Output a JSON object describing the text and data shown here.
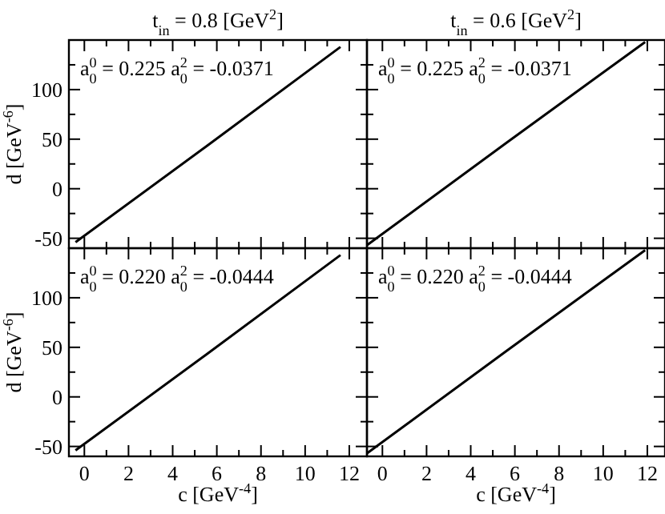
{
  "chart_data": [
    {
      "type": "line",
      "title": "t$_{in}$ = 0.8 [GeV$^{2}$]",
      "ylabel": "d [GeV$^{-6}$]",
      "annotations": [
        "a$_{0}$$^{0}$ = 0.225 a$_{0}$$^{2}$ = -0.0371"
      ],
      "tick_labels": "y",
      "xlim": [
        -0.7,
        12.8
      ],
      "ylim": [
        -60,
        150
      ],
      "xticks": [
        0,
        {
          "value": 1,
          "label": null
        },
        2,
        {
          "value": 3,
          "label": null
        },
        4,
        {
          "value": 5,
          "label": null
        },
        6,
        {
          "value": 7,
          "label": null
        },
        8,
        {
          "value": 9,
          "label": null
        },
        10,
        {
          "value": 11,
          "label": null
        },
        12
      ],
      "yticks": [
        -50,
        {
          "value": -25,
          "label": null
        },
        0,
        {
          "value": 25,
          "label": null
        },
        50,
        {
          "value": 75,
          "label": null
        },
        100,
        {
          "value": 125,
          "label": null
        }
      ],
      "series": [
        {
          "color": "#000000",
          "x": [
            -0.4,
            5.6,
            11.6
          ],
          "values": [
            -54,
            44,
            143
          ]
        }
      ]
    },
    {
      "type": "line",
      "title": "t$_{in}$ = 0.6 [GeV$^{2}$]",
      "annotations": [
        "a$_{0}$$^{0}$ = 0.225 a$_{0}$$^{2}$ = -0.0371"
      ],
      "tick_labels": false,
      "xlim": [
        -0.7,
        12.8
      ],
      "ylim": [
        -60,
        150
      ],
      "xticks": [
        0,
        {
          "value": 1,
          "label": null
        },
        2,
        {
          "value": 3,
          "label": null
        },
        4,
        {
          "value": 5,
          "label": null
        },
        6,
        {
          "value": 7,
          "label": null
        },
        8,
        {
          "value": 9,
          "label": null
        },
        10,
        {
          "value": 11,
          "label": null
        },
        12
      ],
      "yticks": [
        -50,
        {
          "value": -25,
          "label": null
        },
        0,
        {
          "value": 25,
          "label": null
        },
        50,
        {
          "value": 75,
          "label": null
        },
        100,
        {
          "value": 125,
          "label": null
        }
      ],
      "series": [
        {
          "color": "#000000",
          "x": [
            -0.7,
            5.6,
            11.9
          ],
          "values": [
            -57,
            46,
            148
          ]
        }
      ]
    },
    {
      "type": "line",
      "xlabel": "c [GeV$^{-4}$]",
      "ylabel": "d [GeV$^{-6}$]",
      "annotations": [
        "a$_{0}$$^{0}$ = 0.220 a$_{0}$$^{2}$ = -0.0444"
      ],
      "xlim": [
        -0.7,
        12.8
      ],
      "ylim": [
        -60,
        150
      ],
      "xticks": [
        0,
        {
          "value": 1,
          "label": null
        },
        2,
        {
          "value": 3,
          "label": null
        },
        4,
        {
          "value": 5,
          "label": null
        },
        6,
        {
          "value": 7,
          "label": null
        },
        8,
        {
          "value": 9,
          "label": null
        },
        10,
        {
          "value": 11,
          "label": null
        },
        12
      ],
      "yticks": [
        -50,
        {
          "value": -25,
          "label": null
        },
        0,
        {
          "value": 25,
          "label": null
        },
        50,
        {
          "value": 75,
          "label": null
        },
        100,
        {
          "value": 125,
          "label": null
        }
      ],
      "series": [
        {
          "color": "#000000",
          "x": [
            -0.4,
            5.6,
            11.6
          ],
          "values": [
            -54,
            44,
            143
          ]
        }
      ]
    },
    {
      "type": "line",
      "xlabel": "c [GeV$^{-4}$]",
      "annotations": [
        "a$_{0}$$^{0}$ = 0.220 a$_{0}$$^{2}$ = -0.0444"
      ],
      "tick_labels": "x",
      "xlim": [
        -0.7,
        12.8
      ],
      "ylim": [
        -60,
        150
      ],
      "xticks": [
        0,
        {
          "value": 1,
          "label": null
        },
        2,
        {
          "value": 3,
          "label": null
        },
        4,
        {
          "value": 5,
          "label": null
        },
        6,
        {
          "value": 7,
          "label": null
        },
        8,
        {
          "value": 9,
          "label": null
        },
        10,
        {
          "value": 11,
          "label": null
        },
        12
      ],
      "yticks": [
        -50,
        {
          "value": -25,
          "label": null
        },
        0,
        {
          "value": 25,
          "label": null
        },
        50,
        {
          "value": 75,
          "label": null
        },
        100,
        {
          "value": 125,
          "label": null
        }
      ],
      "series": [
        {
          "color": "#000000",
          "x": [
            -0.7,
            5.6,
            11.9
          ],
          "values": [
            -57,
            46,
            148
          ]
        }
      ]
    }
  ]
}
